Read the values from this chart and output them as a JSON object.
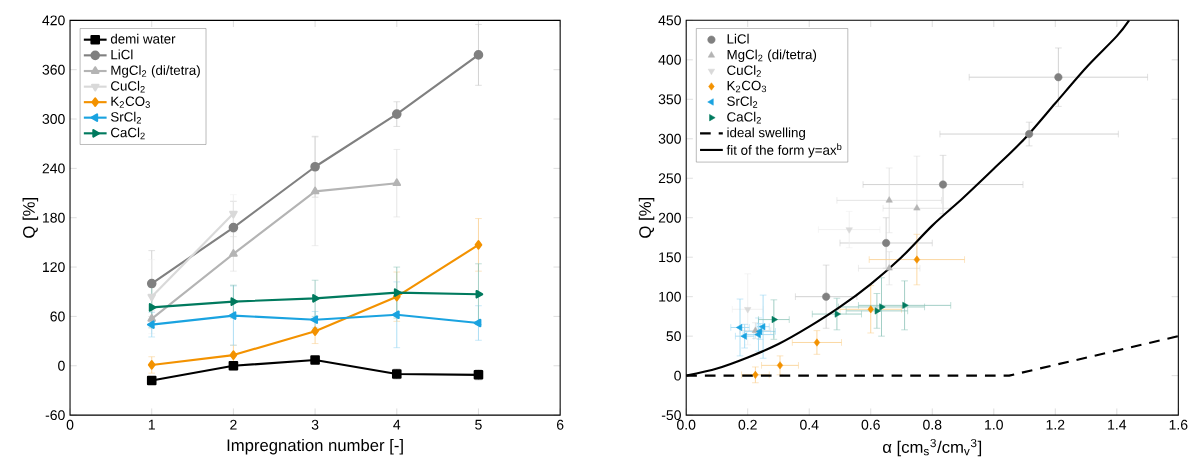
{
  "chart_data": [
    {
      "type": "line",
      "xlabel": "Impregnation number [-]",
      "ylabel": "Q [%]",
      "x": [
        1,
        2,
        3,
        4,
        5
      ],
      "xlim": [
        0,
        6
      ],
      "xticks": [
        0,
        1,
        2,
        3,
        4,
        5,
        6
      ],
      "ylim": [
        -60,
        420
      ],
      "yticks": [
        -60,
        0,
        60,
        120,
        180,
        240,
        300,
        360,
        420
      ],
      "grid": false,
      "legend": "top left",
      "series": [
        {
          "name": "demi water",
          "color": "#000000",
          "marker": "square",
          "values": [
            -18,
            0,
            7,
            -10,
            -11
          ],
          "errors": [
            4,
            5,
            4,
            6,
            6
          ]
        },
        {
          "name": "LiCl",
          "color": "#808080",
          "marker": "circle",
          "values": [
            100,
            168,
            242,
            306,
            378
          ],
          "errors": [
            40,
            32,
            37,
            15,
            37
          ]
        },
        {
          "name": "MgCl$_{2}$ (di/tetra)",
          "color": "#b4b4b4",
          "marker": "triangle",
          "values": [
            57,
            136,
            212,
            222,
            null
          ],
          "errors": [
            10,
            21,
            66,
            41,
            null
          ]
        },
        {
          "name": "CuCl$_{2}$",
          "color": "#d9d9d9",
          "marker": "triangle_down",
          "values": [
            84,
            185,
            null,
            null,
            null
          ],
          "errors": [
            45,
            23,
            null,
            null,
            null
          ]
        },
        {
          "name": "K$_{2}$CO$_{3}$",
          "color": "#f39200",
          "marker": "diamond",
          "values": [
            1,
            13,
            42,
            84,
            147
          ],
          "errors": [
            10,
            12,
            15,
            30,
            32
          ]
        },
        {
          "name": "SrCl$_{2}$",
          "color": "#1aa3e0",
          "marker": "triangle_left",
          "values": [
            50,
            61,
            56,
            62,
            52
          ],
          "errors": [
            15,
            36,
            10,
            40,
            21
          ]
        },
        {
          "name": "CaCl$_{2}$",
          "color": "#007a5e",
          "marker": "triangle_right",
          "values": [
            71,
            78,
            82,
            89,
            87
          ],
          "errors": [
            25,
            20,
            22,
            31,
            37
          ]
        }
      ]
    },
    {
      "type": "scatter",
      "xlabel": "α [cm$_{s}$$^{3}$/cm$_{v}$$^{3}$]",
      "ylabel": "Q [%]",
      "xlim": [
        0,
        1.6
      ],
      "xticks": [
        {
          "value": 0,
          "label": "0.0"
        },
        0.2,
        0.4,
        0.6,
        0.8,
        {
          "value": 1,
          "label": "1.0"
        },
        1.2,
        1.4,
        1.6
      ],
      "ylim": [
        -50,
        450
      ],
      "yticks": [
        -50,
        0,
        50,
        100,
        150,
        200,
        250,
        300,
        350,
        400,
        450
      ],
      "grid": false,
      "legend": "top left",
      "series": [
        {
          "name": "LiCl",
          "color": "#808080",
          "marker": "circle",
          "x": [
            0.455,
            0.65,
            0.835,
            1.115,
            1.21
          ],
          "values": [
            100,
            168,
            242,
            306,
            378
          ],
          "errors": [
            40,
            32,
            37,
            15,
            37
          ],
          "xerrors": [
            0.1,
            0.15,
            0.26,
            0.29,
            0.29
          ]
        },
        {
          "name": "MgCl$_{2}$ (di/tetra)",
          "color": "#b4b4b4",
          "marker": "triangle",
          "x": [
            0.225,
            0.66,
            0.75,
            0.66
          ],
          "values": [
            57,
            136,
            212,
            222
          ],
          "errors": [
            10,
            21,
            66,
            41
          ],
          "xerrors": [
            0.05,
            0.1,
            0.11,
            0.17
          ]
        },
        {
          "name": "CuCl$_{2}$",
          "color": "#d9d9d9",
          "marker": "triangle_down",
          "x": [
            0.2,
            0.53
          ],
          "values": [
            84,
            185
          ],
          "errors": [
            45,
            23
          ],
          "xerrors": [
            0.05,
            0.1
          ]
        },
        {
          "name": "K$_{2}$CO$_{3}$",
          "color": "#f39200",
          "marker": "diamond",
          "x": [
            0.225,
            0.305,
            0.425,
            0.6,
            0.75
          ],
          "values": [
            1,
            13,
            42,
            84,
            147
          ],
          "errors": [
            10,
            12,
            15,
            30,
            32
          ],
          "xerrors": [
            0.045,
            0.06,
            0.08,
            0.1,
            0.155
          ]
        },
        {
          "name": "SrCl$_{2}$",
          "color": "#1aa3e0",
          "marker": "triangle_left",
          "x": [
            0.19,
            0.175,
            0.24,
            0.25,
            0.235
          ],
          "values": [
            50,
            61,
            56,
            62,
            52
          ],
          "errors": [
            15,
            36,
            10,
            40,
            21
          ],
          "xerrors": [
            0.03,
            0.03,
            0.05,
            0.02,
            0.05
          ]
        },
        {
          "name": "CaCl$_{2}$",
          "color": "#007a5e",
          "marker": "triangle_right",
          "x": [
            0.285,
            0.49,
            0.62,
            0.71,
            0.635
          ],
          "values": [
            71,
            78,
            82,
            89,
            87
          ],
          "errors": [
            25,
            20,
            22,
            31,
            37
          ],
          "xerrors": [
            0.05,
            0.08,
            0.1,
            0.15,
            0.14
          ]
        },
        {
          "name": "ideal swelling",
          "type": "line",
          "color": "#000000",
          "line_style": "dashed",
          "marker": "none",
          "x": [
            0,
            1.05,
            1.6
          ],
          "values": [
            0,
            0,
            50
          ]
        },
        {
          "name": "fit of the form y=ax$^{b}$",
          "type": "line",
          "color": "#000000",
          "line_style": "solid",
          "marker": "none",
          "x": [
            0,
            0.1,
            0.2,
            0.3,
            0.4,
            0.5,
            0.6,
            0.7,
            0.8,
            0.9,
            1.0,
            1.1,
            1.2,
            1.3,
            1.4,
            1.44
          ],
          "values": [
            0,
            9,
            23,
            40,
            62,
            87,
            116,
            150,
            190,
            225,
            262,
            300,
            345,
            390,
            430,
            450
          ]
        }
      ]
    }
  ]
}
